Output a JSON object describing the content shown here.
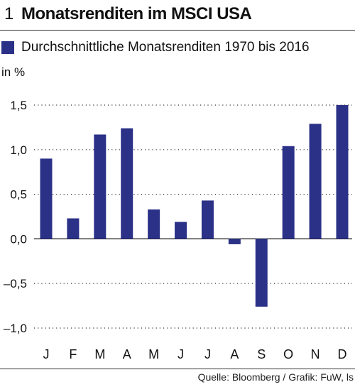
{
  "header": {
    "figure_number": "1",
    "title": "Monatsrenditen im MSCI USA"
  },
  "legend": {
    "label": "Durchschnittliche Monatsrenditen 1970 bis 2016",
    "color": "#2b3187"
  },
  "unit_label": "in %",
  "source": "Quelle: Bloomberg / Grafik: FuW, ls",
  "chart_data": {
    "type": "bar",
    "title": "Monatsrenditen im MSCI USA",
    "subtitle": "Durchschnittliche Monatsrenditen 1970 bis 2016",
    "ylabel": "in %",
    "ylim": [
      -1.0,
      1.5
    ],
    "yticks": [
      -1.0,
      -0.5,
      0.0,
      0.5,
      1.0,
      1.5
    ],
    "ytick_labels": [
      "–1,0",
      "–0,5",
      "0,0",
      "0,5",
      "1,0",
      "1,5"
    ],
    "grid": true,
    "legend_position": "top-left",
    "categories": [
      "J",
      "F",
      "M",
      "A",
      "M",
      "J",
      "J",
      "A",
      "S",
      "O",
      "N",
      "D"
    ],
    "series": [
      {
        "name": "Durchschnittliche Monatsrenditen 1970 bis 2016",
        "color": "#2b3187",
        "values": [
          0.9,
          0.23,
          1.17,
          1.24,
          0.33,
          0.19,
          0.43,
          -0.06,
          -0.76,
          1.04,
          1.29,
          1.5
        ]
      }
    ]
  }
}
